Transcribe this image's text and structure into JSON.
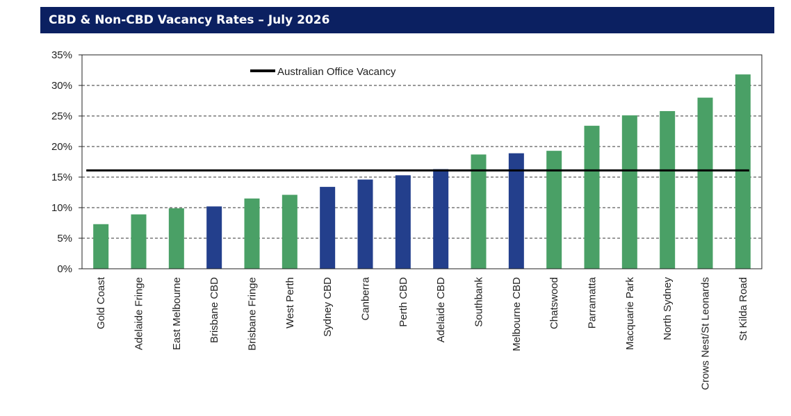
{
  "header": {
    "title": "CBD & Non-CBD Vacancy Rates – July 2026"
  },
  "chart_data": {
    "type": "bar",
    "title": "CBD & Non-CBD Vacancy Rates – July 2026",
    "xlabel": "",
    "ylabel": "",
    "ylim": [
      0,
      35
    ],
    "yticks": [
      "0%",
      "5%",
      "10%",
      "15%",
      "20%",
      "25%",
      "30%",
      "35%"
    ],
    "grid": "horizontal-dashed",
    "legend_position": "top-left",
    "categories": [
      "Gold Coast",
      "Adelaide Fringe",
      "East Melbourne",
      "Brisbane CBD",
      "Brisbane Fringe",
      "West Perth",
      "Sydney CBD",
      "Canberra",
      "Perth CBD",
      "Adelaide CBD",
      "Southbank",
      "Melbourne CBD",
      "Chatswood",
      "Parramatta",
      "Macquarie Park",
      "North Sydney",
      "Crows Nest/St Leonards",
      "St Kilda Road"
    ],
    "values": [
      7.3,
      8.9,
      9.9,
      10.2,
      11.5,
      12.1,
      13.4,
      14.6,
      15.3,
      16.3,
      18.7,
      18.9,
      19.3,
      23.4,
      25.1,
      25.8,
      28.0,
      31.8
    ],
    "bar_colors": [
      "#4aa066",
      "#4aa066",
      "#4aa066",
      "#233f8c",
      "#4aa066",
      "#4aa066",
      "#233f8c",
      "#233f8c",
      "#233f8c",
      "#233f8c",
      "#4aa066",
      "#233f8c",
      "#4aa066",
      "#4aa066",
      "#4aa066",
      "#4aa066",
      "#4aa066",
      "#4aa066"
    ],
    "reference_line": {
      "name": "Australian Office Vacancy",
      "value": 16.1,
      "color": "#000000"
    }
  }
}
